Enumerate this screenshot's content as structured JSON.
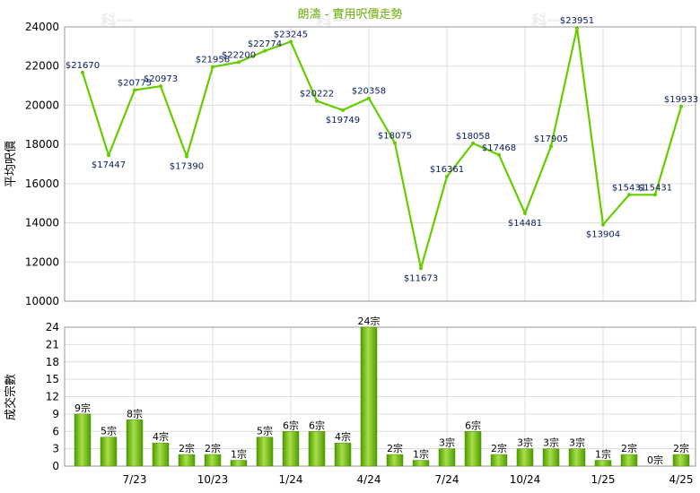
{
  "chart_data": [
    {
      "type": "line",
      "title": "朗濤 - 實用呎價走勢",
      "ylabel": "平均呎價",
      "ylim": [
        10000,
        24000
      ],
      "yticks": [
        10000,
        12000,
        14000,
        16000,
        18000,
        20000,
        22000,
        24000
      ],
      "grid": true,
      "color": "#66cc00",
      "label_prefix": "$",
      "values": [
        21670,
        17447,
        20775,
        20973,
        17390,
        21956,
        22200,
        22774,
        23245,
        20222,
        19749,
        20358,
        18075,
        11673,
        16361,
        18058,
        17468,
        14481,
        17905,
        23951,
        13904,
        15431,
        15431,
        19933
      ]
    },
    {
      "type": "bar",
      "ylabel": "成交宗數",
      "ylim": [
        0,
        24
      ],
      "yticks": [
        0,
        3,
        6,
        9,
        12,
        15,
        18,
        21,
        24
      ],
      "grid": true,
      "color": "#66bb11",
      "label_suffix": "宗",
      "values": [
        9,
        5,
        8,
        4,
        2,
        2,
        1,
        5,
        6,
        6,
        4,
        24,
        2,
        1,
        3,
        6,
        2,
        3,
        3,
        3,
        1,
        2,
        0,
        2
      ],
      "xticks": [
        {
          "label": "7/23",
          "at": 2
        },
        {
          "label": "10/23",
          "at": 5
        },
        {
          "label": "1/24",
          "at": 8
        },
        {
          "label": "4/24",
          "at": 11
        },
        {
          "label": "7/24",
          "at": 14
        },
        {
          "label": "10/24",
          "at": 17
        },
        {
          "label": "1/25",
          "at": 20
        },
        {
          "label": "4/25",
          "at": 23
        }
      ]
    }
  ],
  "watermark": "科一"
}
